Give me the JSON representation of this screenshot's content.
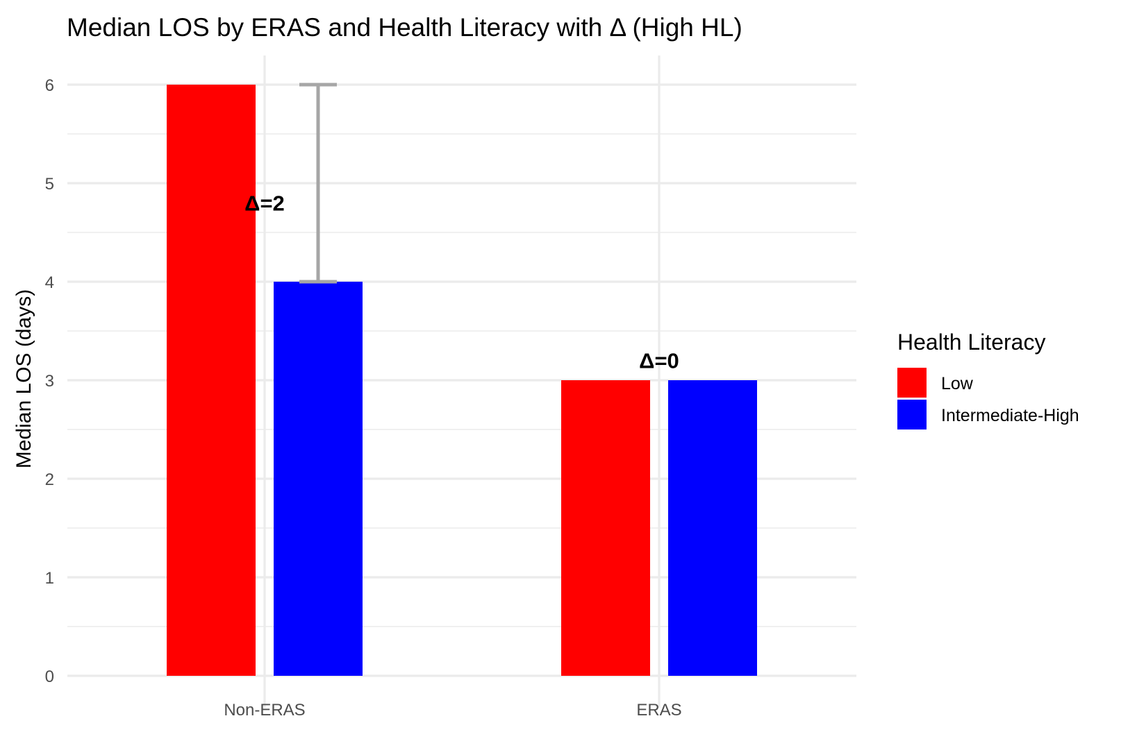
{
  "chart_data": {
    "type": "bar",
    "title": "Median LOS by ERAS and Health Literacy with Δ (High HL)",
    "xlabel": "",
    "ylabel": "Median LOS (days)",
    "ylim": [
      0,
      6.3
    ],
    "yticks": [
      "0",
      "1",
      "2",
      "3",
      "4",
      "5",
      "6"
    ],
    "grid": true,
    "categories": [
      "Non-ERAS",
      "ERAS"
    ],
    "series": [
      {
        "name": "Low",
        "color": "#ff0000",
        "values": [
          6,
          3
        ]
      },
      {
        "name": "Intermediate-High",
        "color": "#0000ff",
        "values": [
          4,
          3
        ]
      }
    ],
    "error_bars": [
      {
        "category": "Non-ERAS",
        "series": "Intermediate-High",
        "low": 4,
        "high": 6,
        "color": "#a6a6a6"
      }
    ],
    "annotations": [
      {
        "category": "Non-ERAS",
        "text": "Δ=2",
        "y": 4.8
      },
      {
        "category": "ERAS",
        "text": "Δ=0",
        "y": 3.2
      }
    ],
    "legend": {
      "title": "Health Literacy",
      "position": "right",
      "items": [
        "Low",
        "Intermediate-High"
      ]
    }
  }
}
